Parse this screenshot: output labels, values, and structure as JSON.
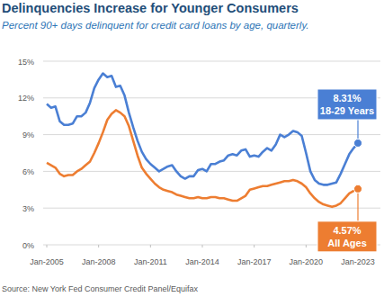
{
  "chart_data": {
    "type": "line",
    "title": "Delinquencies Increase for Younger Consumers",
    "subtitle": "Percent 90+ days delinquent for credit card loans by age, quarterly.",
    "source": "Source: New York Fed Consumer Credit Panel/Equifax",
    "x": [
      2005,
      2005.25,
      2005.5,
      2005.75,
      2006,
      2006.25,
      2006.5,
      2006.75,
      2007,
      2007.25,
      2007.5,
      2007.75,
      2008,
      2008.25,
      2008.5,
      2008.75,
      2009,
      2009.25,
      2009.5,
      2009.75,
      2010,
      2010.25,
      2010.5,
      2010.75,
      2011,
      2011.25,
      2011.5,
      2011.75,
      2012,
      2012.25,
      2012.5,
      2012.75,
      2013,
      2013.25,
      2013.5,
      2013.75,
      2014,
      2014.25,
      2014.5,
      2014.75,
      2015,
      2015.25,
      2015.5,
      2015.75,
      2016,
      2016.25,
      2016.5,
      2016.75,
      2017,
      2017.25,
      2017.5,
      2017.75,
      2018,
      2018.25,
      2018.5,
      2018.75,
      2019,
      2019.25,
      2019.5,
      2019.75,
      2020,
      2020.25,
      2020.5,
      2020.75,
      2021,
      2021.25,
      2021.5,
      2021.75,
      2022,
      2022.25,
      2022.5,
      2022.75,
      2023
    ],
    "series": [
      {
        "name": "18-29 Years",
        "color": "#4a7fd4",
        "annotation": "8.31%",
        "values": [
          11.5,
          11.2,
          11.3,
          10.1,
          9.8,
          9.8,
          9.9,
          10.5,
          10.5,
          10.8,
          11.6,
          12.8,
          13.5,
          14.0,
          13.7,
          13.8,
          12.9,
          13.0,
          12.2,
          10.8,
          9.6,
          8.5,
          7.6,
          7.0,
          6.6,
          6.3,
          6.0,
          6.2,
          6.4,
          6.5,
          6.0,
          5.6,
          5.4,
          5.6,
          5.6,
          6.1,
          6.2,
          6.0,
          6.6,
          6.6,
          6.8,
          6.9,
          7.3,
          7.4,
          7.3,
          7.7,
          7.8,
          7.2,
          7.3,
          7.2,
          7.6,
          7.9,
          7.7,
          8.2,
          9.0,
          8.8,
          9.0,
          9.3,
          9.2,
          8.9,
          7.5,
          6.0,
          5.3,
          5.0,
          4.9,
          4.9,
          5.0,
          5.1,
          5.8,
          6.6,
          7.4,
          7.9,
          8.31
        ]
      },
      {
        "name": "All Ages",
        "color": "#ed7d31",
        "annotation": "4.57%",
        "values": [
          6.7,
          6.5,
          6.3,
          5.8,
          5.6,
          5.7,
          5.7,
          6.0,
          6.2,
          6.5,
          6.8,
          7.5,
          8.3,
          9.2,
          10.2,
          10.7,
          11.0,
          10.8,
          10.5,
          9.7,
          8.5,
          7.3,
          6.3,
          5.8,
          5.4,
          5.0,
          4.7,
          4.5,
          4.4,
          4.3,
          4.1,
          4.0,
          3.9,
          3.8,
          3.8,
          3.9,
          3.8,
          3.8,
          3.9,
          3.9,
          3.8,
          3.8,
          3.7,
          3.6,
          3.6,
          3.8,
          4.0,
          4.5,
          4.6,
          4.7,
          4.8,
          4.8,
          4.9,
          5.0,
          5.1,
          5.2,
          5.2,
          5.3,
          5.2,
          5.0,
          4.7,
          4.2,
          3.8,
          3.5,
          3.3,
          3.2,
          3.1,
          3.2,
          3.4,
          3.8,
          4.2,
          4.4,
          4.57
        ]
      }
    ],
    "xlim": [
      2005,
      2023
    ],
    "xticks": [
      {
        "value": 2005,
        "label": "Jan-2005"
      },
      {
        "value": 2008,
        "label": "Jan-2008"
      },
      {
        "value": 2011,
        "label": "Jan-2011"
      },
      {
        "value": 2014,
        "label": "Jan-2014"
      },
      {
        "value": 2017,
        "label": "Jan-2017"
      },
      {
        "value": 2020,
        "label": "Jan-2020"
      },
      {
        "value": 2023,
        "label": "Jan-2023"
      }
    ],
    "ylim": [
      0,
      15
    ],
    "yticks": [
      {
        "value": 0,
        "label": "0%"
      },
      {
        "value": 3,
        "label": "3%"
      },
      {
        "value": 6,
        "label": "6%"
      },
      {
        "value": 9,
        "label": "9%"
      },
      {
        "value": 12,
        "label": "12%"
      },
      {
        "value": 15,
        "label": "15%"
      }
    ],
    "grid": true
  }
}
